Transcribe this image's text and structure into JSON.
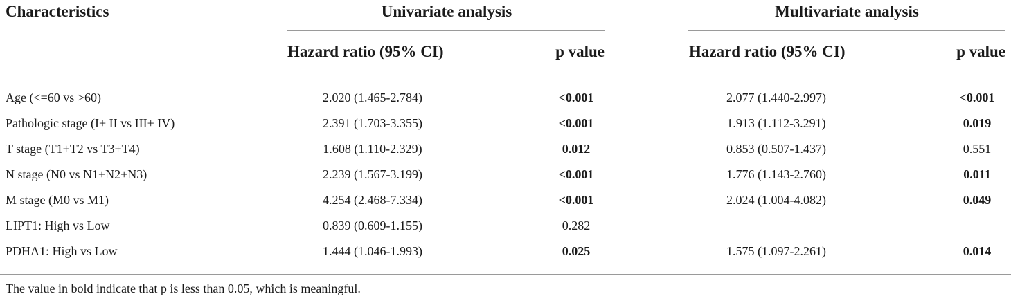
{
  "table": {
    "headers": {
      "characteristics": "Characteristics",
      "univariate": "Univariate analysis",
      "multivariate": "Multivariate analysis",
      "hr_uni": "Hazard ratio (95% CI)",
      "p_uni": "p value",
      "hr_multi": "Hazard ratio (95% CI)",
      "p_multi": "p value"
    },
    "rows": [
      {
        "characteristic": "Age (<=60 vs >60)",
        "uni_hr": "2.020 (1.465-2.784)",
        "uni_p": "<0.001",
        "uni_p_bold": true,
        "multi_hr": "2.077 (1.440-2.997)",
        "multi_p": "<0.001",
        "multi_p_bold": true
      },
      {
        "characteristic": "Pathologic stage (I+ II vs III+ IV)",
        "uni_hr": "2.391 (1.703-3.355)",
        "uni_p": "<0.001",
        "uni_p_bold": true,
        "multi_hr": "1.913 (1.112-3.291)",
        "multi_p": "0.019",
        "multi_p_bold": true
      },
      {
        "characteristic": "T stage (T1+T2 vs T3+T4)",
        "uni_hr": "1.608 (1.110-2.329)",
        "uni_p": "0.012",
        "uni_p_bold": true,
        "multi_hr": "0.853 (0.507-1.437)",
        "multi_p": "0.551",
        "multi_p_bold": false
      },
      {
        "characteristic": "N stage (N0 vs N1+N2+N3)",
        "uni_hr": "2.239 (1.567-3.199)",
        "uni_p": "<0.001",
        "uni_p_bold": true,
        "multi_hr": "1.776 (1.143-2.760)",
        "multi_p": "0.011",
        "multi_p_bold": true
      },
      {
        "characteristic": "M stage (M0 vs M1)",
        "uni_hr": "4.254 (2.468-7.334)",
        "uni_p": "<0.001",
        "uni_p_bold": true,
        "multi_hr": "2.024 (1.004-4.082)",
        "multi_p": "0.049",
        "multi_p_bold": true
      },
      {
        "characteristic": "LIPT1: High vs Low",
        "uni_hr": "0.839 (0.609-1.155)",
        "uni_p": "0.282",
        "uni_p_bold": false,
        "multi_hr": "",
        "multi_p": "",
        "multi_p_bold": false
      },
      {
        "characteristic": "PDHA1: High vs Low",
        "uni_hr": "1.444 (1.046-1.993)",
        "uni_p": "0.025",
        "uni_p_bold": true,
        "multi_hr": "1.575 (1.097-2.261)",
        "multi_p": "0.014",
        "multi_p_bold": true
      }
    ],
    "footnote": "The value in bold indicate that p is less than 0.05, which is meaningful."
  }
}
